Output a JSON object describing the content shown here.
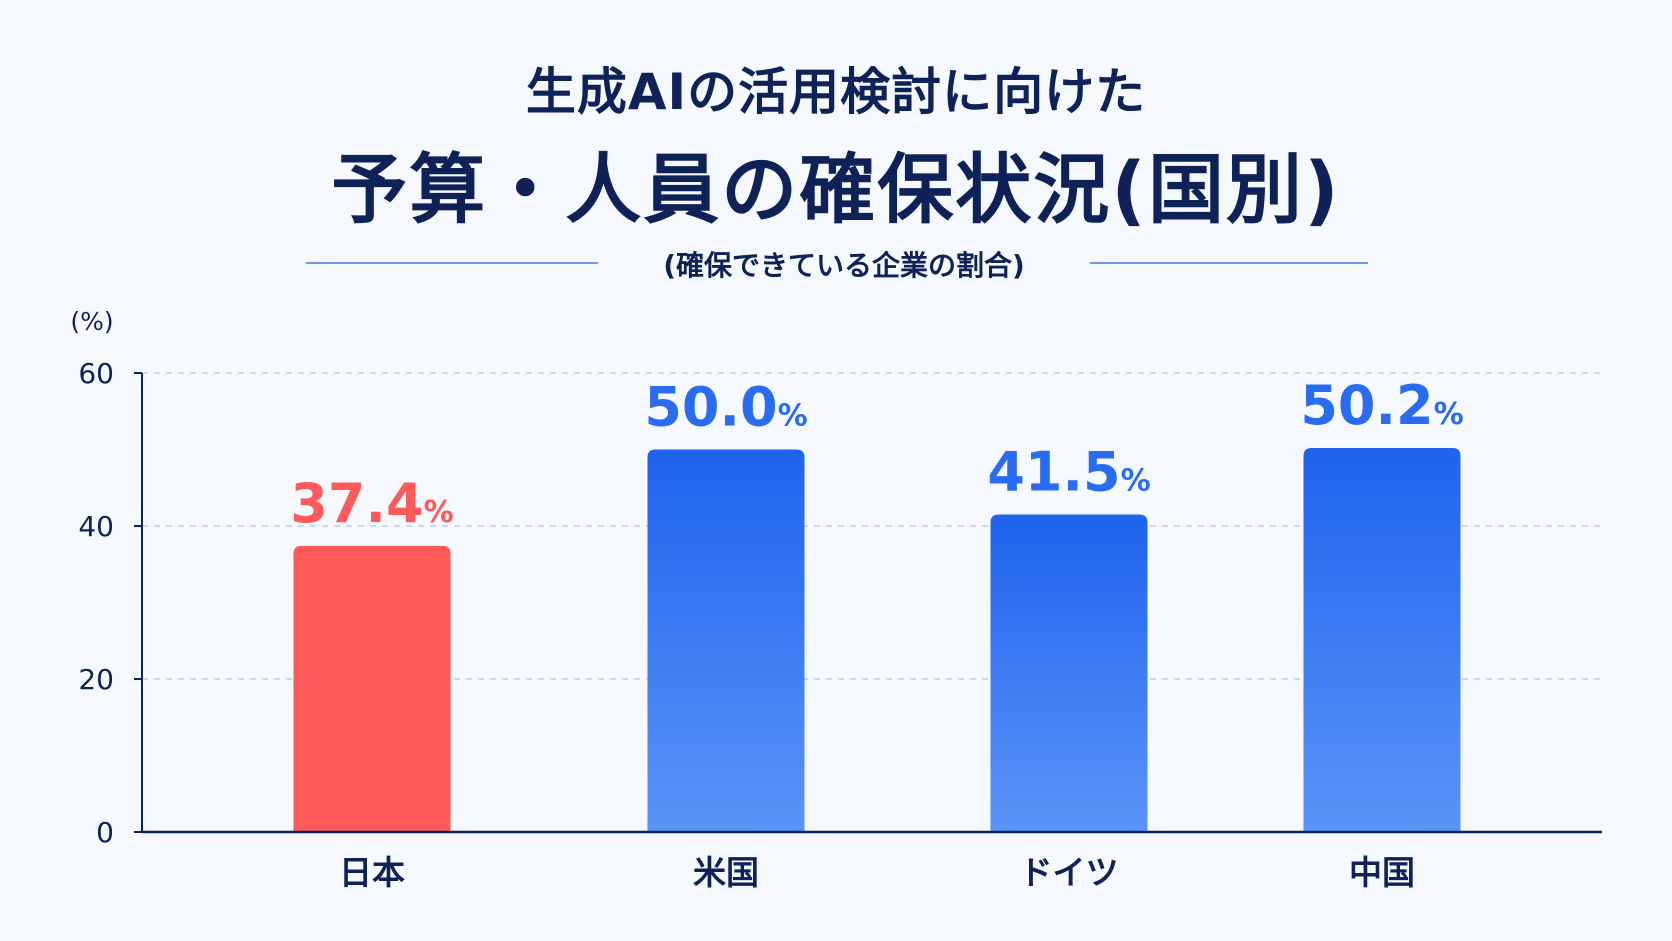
{
  "title": {
    "line1": "生成AIの活用検討に向けた",
    "line2": "予算・人員の確保状況(国別)",
    "subtitle": "(確保できている企業の割合)"
  },
  "colors": {
    "japan": "#ff5a5a",
    "others": "#2a6cf0",
    "axis": "#0f2257",
    "grid": "#b9cdf2"
  },
  "chart_data": {
    "type": "bar",
    "categories": [
      "日本",
      "米国",
      "ドイツ",
      "中国"
    ],
    "values": [
      37.4,
      50.0,
      41.5,
      50.2
    ],
    "value_labels": [
      "37.4",
      "50.0",
      "41.5",
      "50.2"
    ],
    "value_unit": "%",
    "ylabel": "(%)",
    "ylim": [
      0,
      60
    ],
    "yticks": [
      "0",
      "20",
      "40",
      "60"
    ],
    "grid": true,
    "highlight": "日本"
  }
}
